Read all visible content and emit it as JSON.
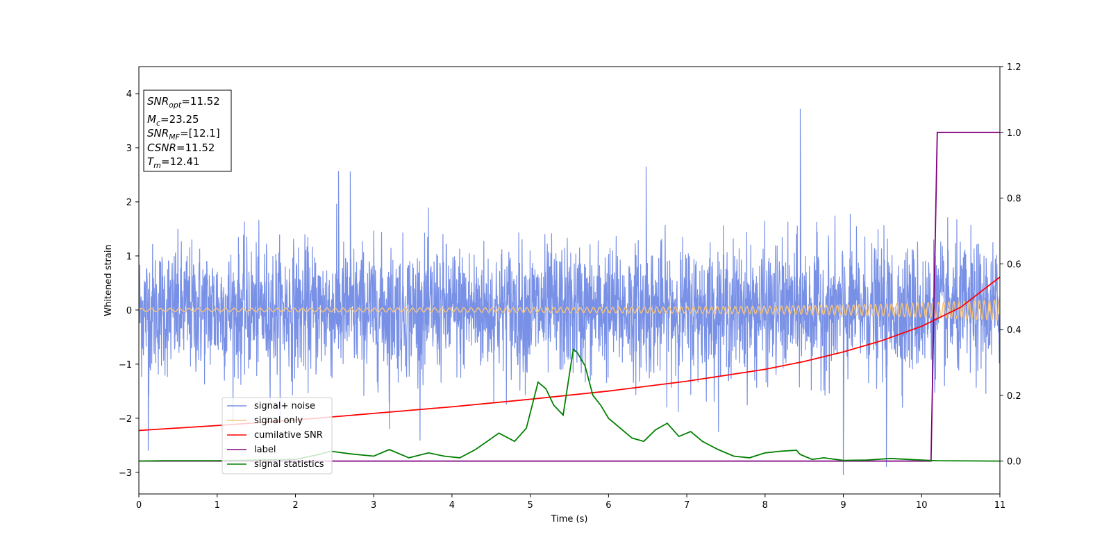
{
  "chart_data": {
    "type": "line",
    "xlabel": "Time (s)",
    "ylabel": "Whitened strain",
    "xlim": [
      0,
      11
    ],
    "ylim_left": [
      -3.4,
      4.5
    ],
    "ylim_right": [
      -0.1,
      1.2
    ],
    "x_ticks": [
      "0",
      "1",
      "2",
      "3",
      "4",
      "5",
      "6",
      "7",
      "8",
      "9",
      "10",
      "11"
    ],
    "y_left_ticks": [
      "−3",
      "−2",
      "−1",
      "0",
      "1",
      "2",
      "3",
      "4"
    ],
    "y_right_ticks": [
      "0.0",
      "0.2",
      "0.4",
      "0.6",
      "0.8",
      "1.0",
      "1.2"
    ],
    "grid": false,
    "legend_position": "lower-left",
    "info_box": {
      "snr_opt": {
        "main": "SNR",
        "sub": "opt",
        "value": "=11.52"
      },
      "mc": {
        "main": "M",
        "sub": "c",
        "value": "=23.25"
      },
      "snr_mf": {
        "main": "SNR",
        "sub": "MF",
        "value": "=[12.1]"
      },
      "csnr": {
        "main": "CSNR",
        "sub": "",
        "value": "=11.52"
      },
      "tm": {
        "main": "T",
        "sub": "m",
        "value": "=12.41"
      }
    },
    "series": [
      {
        "name": "signal+ noise",
        "color": "#7890e6",
        "axis": "left",
        "note_spread": 0.6,
        "x_range": [
          0,
          11
        ],
        "notable_peaks": [
          {
            "x": 8.45,
            "y": 3.72
          },
          {
            "x": 6.48,
            "y": 2.65
          },
          {
            "x": 2.55,
            "y": 2.57
          },
          {
            "x": 2.7,
            "y": 2.56
          },
          {
            "x": 0.12,
            "y": -2.6
          },
          {
            "x": 9.0,
            "y": -3.05
          },
          {
            "x": 9.55,
            "y": -2.9
          },
          {
            "x": 3.2,
            "y": -2.2
          }
        ]
      },
      {
        "name": "signal only",
        "color": "#f5c27a",
        "axis": "left",
        "envelope_x": [
          0,
          2,
          4,
          6,
          8,
          9,
          10,
          10.5,
          11
        ],
        "envelope_amp": [
          0.03,
          0.035,
          0.04,
          0.05,
          0.07,
          0.09,
          0.13,
          0.16,
          0.19
        ]
      },
      {
        "name": "cumilative SNR",
        "color": "#ff0000",
        "axis": "right",
        "x": [
          0,
          1,
          2,
          3,
          4,
          5,
          6,
          7,
          8,
          8.5,
          9,
          9.5,
          10,
          10.5,
          11
        ],
        "y": [
          0.093,
          0.108,
          0.125,
          0.145,
          0.165,
          0.188,
          0.213,
          0.243,
          0.279,
          0.303,
          0.332,
          0.367,
          0.41,
          0.468,
          0.56
        ]
      },
      {
        "name": "label",
        "color": "#800080",
        "axis": "right",
        "x": [
          0,
          10.12,
          10.2,
          11
        ],
        "y": [
          0,
          0,
          1.0,
          1.0
        ]
      },
      {
        "name": "signal statistics",
        "color": "#008000",
        "axis": "right",
        "x": [
          0,
          0.3,
          1,
          2,
          2.3,
          2.45,
          2.7,
          3.0,
          3.2,
          3.45,
          3.7,
          3.9,
          4.1,
          4.3,
          4.45,
          4.6,
          4.8,
          4.95,
          5.1,
          5.2,
          5.3,
          5.42,
          5.55,
          5.6,
          5.7,
          5.8,
          5.9,
          6.0,
          6.15,
          6.3,
          6.45,
          6.6,
          6.75,
          6.9,
          7.05,
          7.2,
          7.4,
          7.6,
          7.8,
          8.0,
          8.2,
          8.4,
          8.45,
          8.6,
          8.75,
          9.0,
          9.3,
          9.6,
          9.9,
          10.2,
          11
        ],
        "y": [
          0,
          0.001,
          0.001,
          0.005,
          0.02,
          0.03,
          0.022,
          0.015,
          0.035,
          0.01,
          0.025,
          0.015,
          0.01,
          0.035,
          0.06,
          0.085,
          0.06,
          0.1,
          0.24,
          0.22,
          0.17,
          0.14,
          0.34,
          0.33,
          0.29,
          0.2,
          0.17,
          0.13,
          0.1,
          0.07,
          0.06,
          0.095,
          0.115,
          0.075,
          0.09,
          0.06,
          0.035,
          0.015,
          0.01,
          0.025,
          0.03,
          0.033,
          0.02,
          0.005,
          0.01,
          0.002,
          0.003,
          0.008,
          0.004,
          0.001,
          0.0
        ]
      }
    ]
  }
}
